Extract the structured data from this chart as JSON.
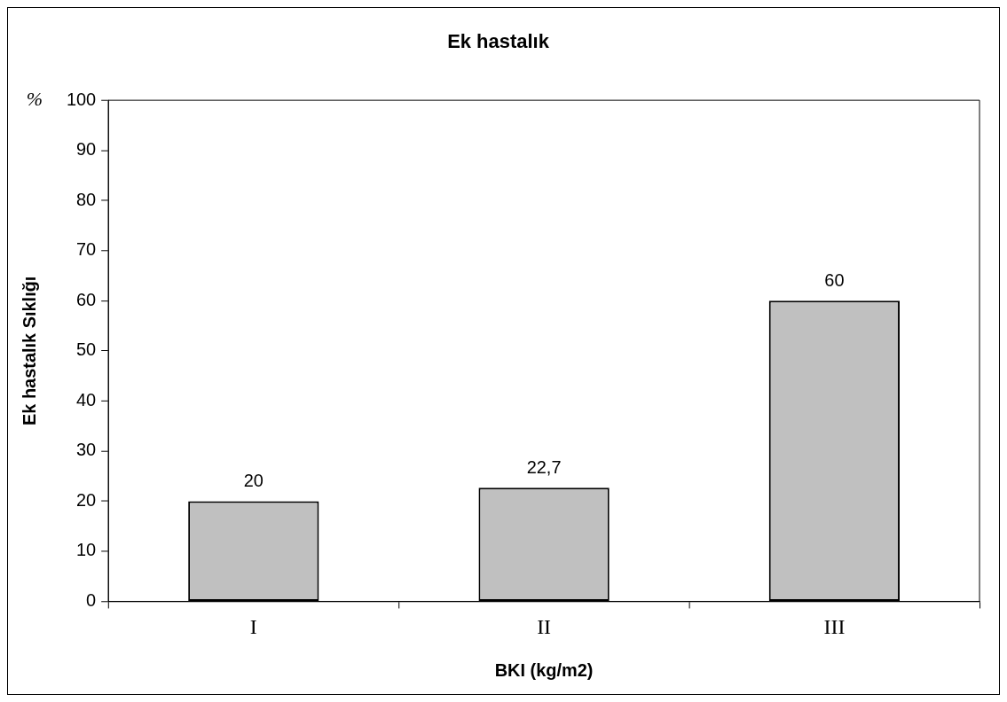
{
  "chart_data": {
    "type": "bar",
    "title": "Ek hastalık",
    "xlabel": "BKI (kg/m2)",
    "ylabel": "Ek hastalık Sıklığı",
    "annotations": [
      "%"
    ],
    "categories": [
      "I",
      "II",
      "III"
    ],
    "values": [
      20,
      22.7,
      60
    ],
    "value_labels": [
      "20",
      "22,7",
      "60"
    ],
    "color": "#c0c0c0",
    "ylim": [
      0,
      100
    ],
    "yticks": [
      0,
      10,
      20,
      30,
      40,
      50,
      60,
      70,
      80,
      90,
      100
    ]
  }
}
